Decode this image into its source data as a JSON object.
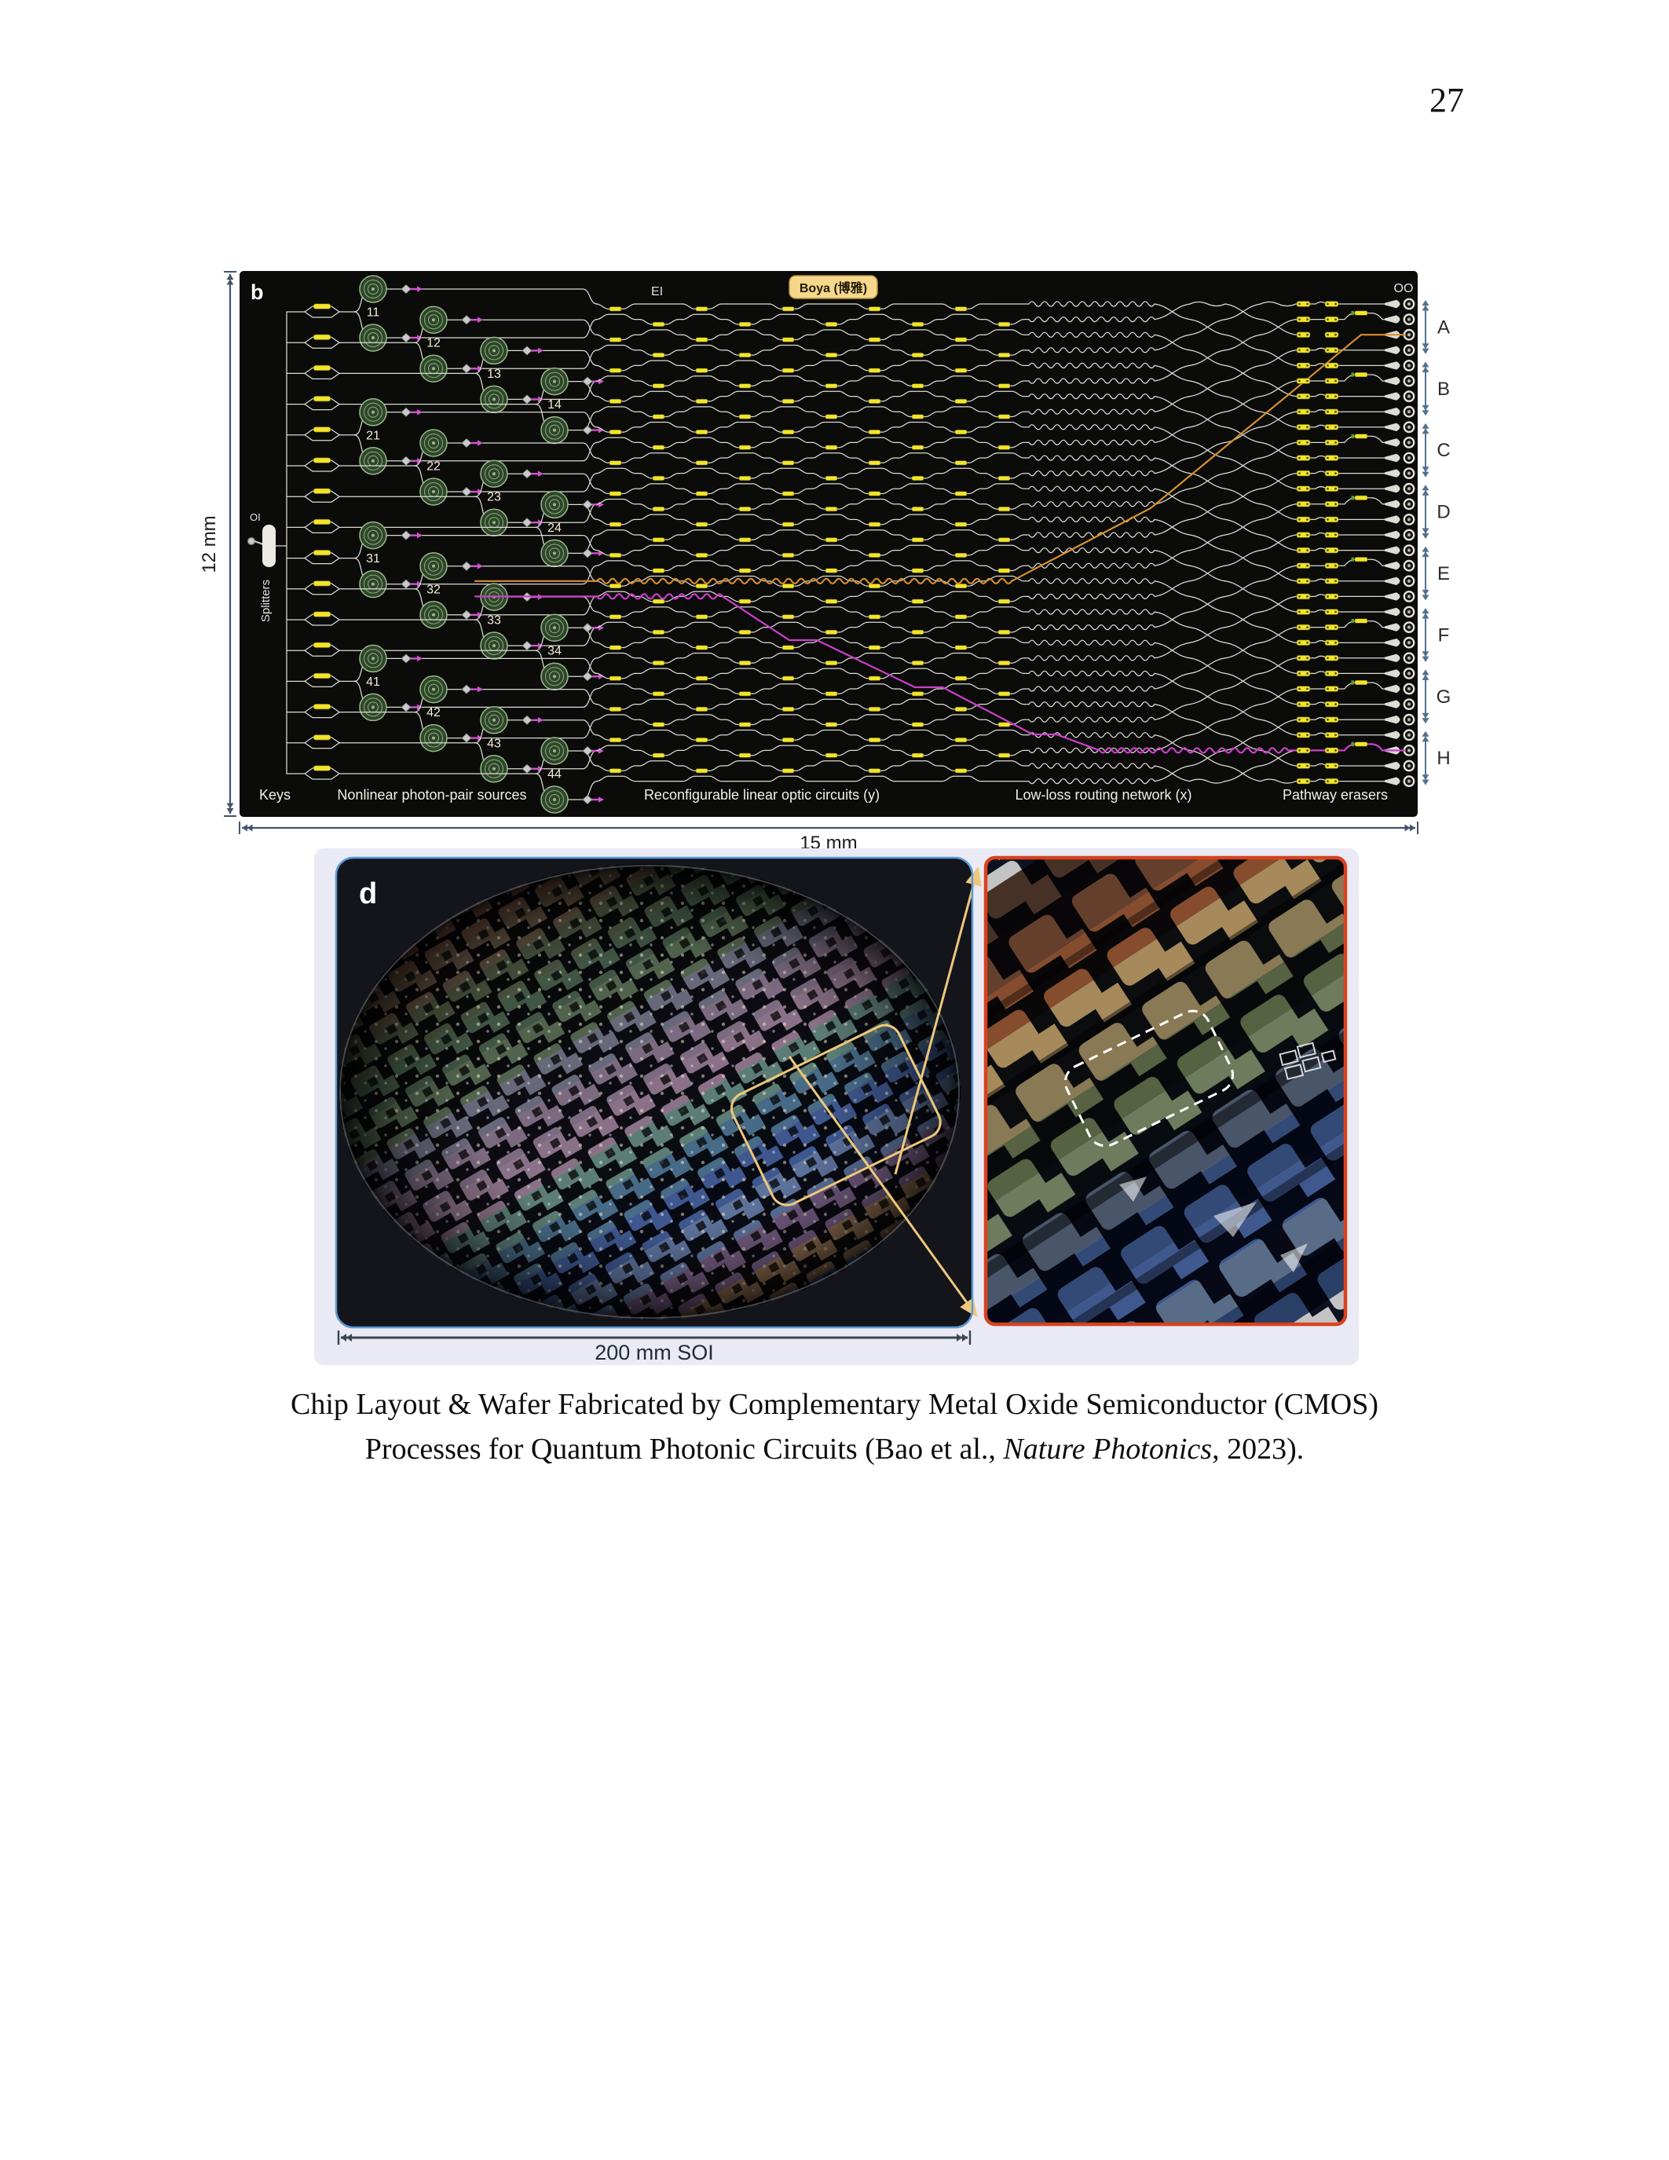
{
  "page": {
    "number": "27"
  },
  "figure_b": {
    "panel_label": "b",
    "input_label": "OI",
    "splitters_label": "Splitters",
    "ei_label": "EI",
    "oo_label": "OO",
    "badge_label": "Boya (博雅)",
    "dim_height": "12 mm",
    "dim_width": "15 mm",
    "section_labels": [
      "Keys",
      "Nonlinear photon-pair sources",
      "Reconfigurable linear optic circuits (y)",
      "Low-loss routing network (x)",
      "Pathway erasers"
    ],
    "source_numbers": [
      "11",
      "12",
      "13",
      "14",
      "21",
      "22",
      "23",
      "24",
      "31",
      "32",
      "33",
      "34",
      "41",
      "42",
      "43",
      "44"
    ],
    "output_groups": [
      "A",
      "B",
      "C",
      "D",
      "E",
      "F",
      "G",
      "H"
    ],
    "colors": {
      "background": "#0b0b09",
      "waveguide": "#dcdcd4",
      "heater_yellow": "#f2e42a",
      "path_orange": "#d89030",
      "path_magenta": "#cc3fcc",
      "spiral_ring": "#9ab88a",
      "spiral_fill": "#2e4629",
      "marker_gray": "#c9c9c9",
      "marker_magenta": "#cc55cc",
      "arrow_steel": "#54708c",
      "dim_dark": "#44546a",
      "badge_bg": "#f6d78b",
      "badge_border": "#b5913f",
      "label_white": "#e8e8e2"
    }
  },
  "figure_d": {
    "panel_label": "d",
    "scale_label": "200 mm SOI",
    "colors": {
      "panel_bg": "#e9eaf4",
      "photo_bg": "#14141b",
      "wafer_border_blue": "#5b9bd5",
      "closeup_border_red": "#d8421f",
      "connector_yellow": "#ecc87c",
      "scale_arrow": "#3a4754",
      "wafer_bands": [
        "#4a4034",
        "#6b4b39",
        "#86573f",
        "#6e5a43",
        "#525f43",
        "#48644d",
        "#5f7758",
        "#7b7d96",
        "#987f9d",
        "#ad89a6",
        "#6e9a8e",
        "#5181a5",
        "#4566b0",
        "#6f8ac2",
        "#8d6da0",
        "#b98a61",
        "#54709e",
        "#3c5c94"
      ],
      "closeup_bands": [
        "#573a2b",
        "#7d4b33",
        "#aa5e36",
        "#d9b272",
        "#b29b6a",
        "#6b7b4f",
        "#8b9d75",
        "#5a6a85",
        "#3d5b97",
        "#4b6db5",
        "#6f89ad",
        "#2f4b7f"
      ]
    }
  },
  "caption": {
    "line1": "Chip Layout & Wafer Fabricated by Complementary Metal Oxide Semiconductor (CMOS)",
    "line2_pre": "Processes for Quantum Photonic Circuits (Bao et al., ",
    "line2_italic": "Nature Photonics",
    "line2_post": ", 2023)."
  }
}
